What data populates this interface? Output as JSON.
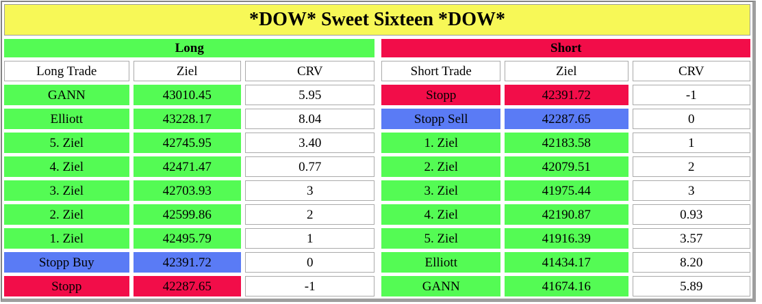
{
  "title": "*DOW* Sweet Sixteen *DOW*",
  "colors": {
    "yellow": "#F7F857",
    "green": "#54FB54",
    "red": "#F20D49",
    "blue": "#5A7BF5",
    "cell_border": "#A9A9A9",
    "frame_dark": "#828282",
    "frame_light": "#9E9E9E"
  },
  "long": {
    "header": "Long",
    "columns": {
      "trade": "Long Trade",
      "ziel": "Ziel",
      "crv": "CRV"
    },
    "rows": [
      {
        "label": "GANN",
        "ziel": "43010.45",
        "crv": "5.95",
        "color": "green"
      },
      {
        "label": "Elliott",
        "ziel": "43228.17",
        "crv": "8.04",
        "color": "green"
      },
      {
        "label": "5. Ziel",
        "ziel": "42745.95",
        "crv": "3.40",
        "color": "green"
      },
      {
        "label": "4. Ziel",
        "ziel": "42471.47",
        "crv": "0.77",
        "color": "green"
      },
      {
        "label": "3. Ziel",
        "ziel": "42703.93",
        "crv": "3",
        "color": "green"
      },
      {
        "label": "2. Ziel",
        "ziel": "42599.86",
        "crv": "2",
        "color": "green"
      },
      {
        "label": "1. Ziel",
        "ziel": "42495.79",
        "crv": "1",
        "color": "green"
      },
      {
        "label": "Stopp Buy",
        "ziel": "42391.72",
        "crv": "0",
        "color": "blue"
      },
      {
        "label": "Stopp",
        "ziel": "42287.65",
        "crv": "-1",
        "color": "red"
      }
    ]
  },
  "short": {
    "header": "Short",
    "columns": {
      "trade": "Short Trade",
      "ziel": "Ziel",
      "crv": "CRV"
    },
    "rows": [
      {
        "label": "Stopp",
        "ziel": "42391.72",
        "crv": "-1",
        "color": "red"
      },
      {
        "label": "Stopp Sell",
        "ziel": "42287.65",
        "crv": "0",
        "color": "blue"
      },
      {
        "label": "1. Ziel",
        "ziel": "42183.58",
        "crv": "1",
        "color": "green"
      },
      {
        "label": "2. Ziel",
        "ziel": "42079.51",
        "crv": "2",
        "color": "green"
      },
      {
        "label": "3. Ziel",
        "ziel": "41975.44",
        "crv": "3",
        "color": "green"
      },
      {
        "label": "4. Ziel",
        "ziel": "42190.87",
        "crv": "0.93",
        "color": "green"
      },
      {
        "label": "5. Ziel",
        "ziel": "41916.39",
        "crv": "3.57",
        "color": "green"
      },
      {
        "label": "Elliott",
        "ziel": "41434.17",
        "crv": "8.20",
        "color": "green"
      },
      {
        "label": "GANN",
        "ziel": "41674.16",
        "crv": "5.89",
        "color": "green"
      }
    ]
  },
  "chart_data": [
    {
      "type": "table",
      "title": "*DOW* Sweet Sixteen *DOW*",
      "section": "Long",
      "columns": [
        "Long Trade",
        "Ziel",
        "CRV"
      ],
      "rows": [
        [
          "GANN",
          "43010.45",
          "5.95"
        ],
        [
          "Elliott",
          "43228.17",
          "8.04"
        ],
        [
          "5. Ziel",
          "42745.95",
          "3.40"
        ],
        [
          "4. Ziel",
          "42471.47",
          "0.77"
        ],
        [
          "3. Ziel",
          "42703.93",
          "3"
        ],
        [
          "2. Ziel",
          "42599.86",
          "2"
        ],
        [
          "1. Ziel",
          "42495.79",
          "1"
        ],
        [
          "Stopp Buy",
          "42391.72",
          "0"
        ],
        [
          "Stopp",
          "42287.65",
          "-1"
        ]
      ]
    },
    {
      "type": "table",
      "title": "*DOW* Sweet Sixteen *DOW*",
      "section": "Short",
      "columns": [
        "Short Trade",
        "Ziel",
        "CRV"
      ],
      "rows": [
        [
          "Stopp",
          "42391.72",
          "-1"
        ],
        [
          "Stopp Sell",
          "42287.65",
          "0"
        ],
        [
          "1. Ziel",
          "42183.58",
          "1"
        ],
        [
          "2. Ziel",
          "42079.51",
          "2"
        ],
        [
          "3. Ziel",
          "41975.44",
          "3"
        ],
        [
          "4. Ziel",
          "42190.87",
          "0.93"
        ],
        [
          "5. Ziel",
          "41916.39",
          "3.57"
        ],
        [
          "Elliott",
          "41434.17",
          "8.20"
        ],
        [
          "GANN",
          "41674.16",
          "5.89"
        ]
      ]
    }
  ]
}
